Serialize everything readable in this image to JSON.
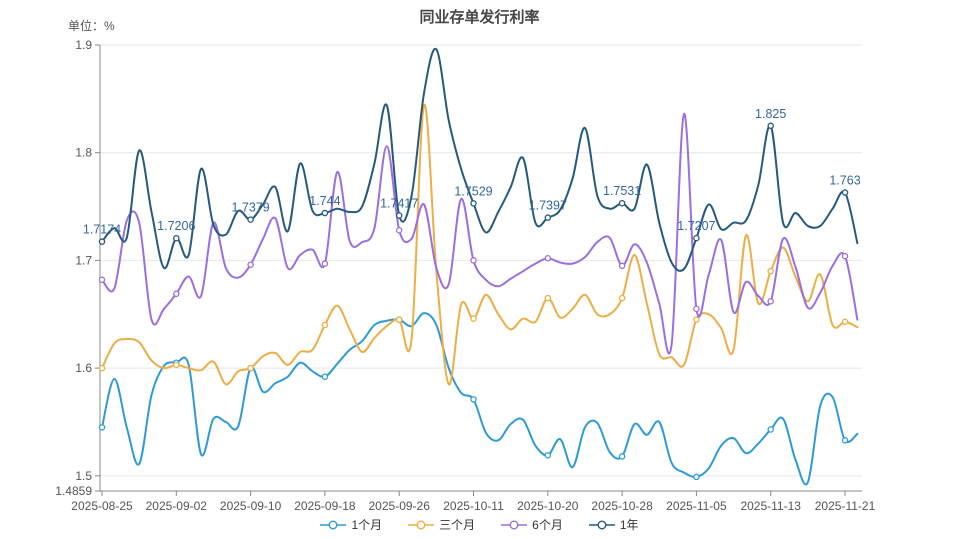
{
  "title": "同业存单发行利率",
  "unit_label": "单位：%",
  "chart_data": {
    "type": "line",
    "title": "同业存单发行利率",
    "ylabel": "单位：%",
    "grid": true,
    "legend_position": "bottom",
    "ylim": [
      1.4859,
      1.9
    ],
    "y_ticks": [
      {
        "v": 1.9,
        "label": "1.9"
      },
      {
        "v": 1.8,
        "label": "1.8"
      },
      {
        "v": 1.7,
        "label": "1.7"
      },
      {
        "v": 1.6,
        "label": "1.6"
      },
      {
        "v": 1.5,
        "label": "1.5"
      },
      {
        "v": 1.4859,
        "label": "1.4859"
      }
    ],
    "x_tick_labels": [
      "2025-08-25",
      "2025-09-02",
      "2025-09-10",
      "2025-09-18",
      "2025-09-26",
      "2025-10-11",
      "2025-10-20",
      "2025-10-28",
      "2025-11-05",
      "2025-11-13",
      "2025-11-21"
    ],
    "tick_every": 6,
    "n_points": 62,
    "series": [
      {
        "name": "1个月",
        "color": "#2e9bd6",
        "values": [
          1.545,
          1.59,
          1.545,
          1.511,
          1.575,
          1.602,
          1.605,
          1.603,
          1.52,
          1.553,
          1.55,
          1.546,
          1.6,
          1.578,
          1.586,
          1.592,
          1.605,
          1.597,
          1.592,
          1.604,
          1.617,
          1.625,
          1.64,
          1.644,
          1.645,
          1.639,
          1.651,
          1.64,
          1.6,
          1.577,
          1.571,
          1.54,
          1.533,
          1.548,
          1.552,
          1.528,
          1.519,
          1.534,
          1.508,
          1.545,
          1.549,
          1.522,
          1.518,
          1.548,
          1.538,
          1.55,
          1.512,
          1.503,
          1.499,
          1.507,
          1.528,
          1.535,
          1.521,
          1.53,
          1.543,
          1.553,
          1.515,
          1.494,
          1.565,
          1.573,
          1.533,
          1.539
        ]
      },
      {
        "name": "三个月",
        "color": "#ecae45",
        "values": [
          1.6,
          1.623,
          1.627,
          1.624,
          1.607,
          1.6,
          1.603,
          1.6,
          1.598,
          1.606,
          1.585,
          1.597,
          1.6,
          1.611,
          1.614,
          1.603,
          1.615,
          1.617,
          1.64,
          1.658,
          1.636,
          1.615,
          1.628,
          1.639,
          1.645,
          1.627,
          1.844,
          1.69,
          1.585,
          1.659,
          1.646,
          1.668,
          1.65,
          1.636,
          1.646,
          1.643,
          1.665,
          1.647,
          1.655,
          1.668,
          1.65,
          1.65,
          1.665,
          1.705,
          1.66,
          1.613,
          1.61,
          1.603,
          1.645,
          1.65,
          1.637,
          1.617,
          1.723,
          1.66,
          1.69,
          1.712,
          1.685,
          1.662,
          1.687,
          1.64,
          1.643,
          1.638
        ]
      },
      {
        "name": "6个月",
        "color": "#9b6fe1",
        "values": [
          1.682,
          1.674,
          1.737,
          1.735,
          1.645,
          1.655,
          1.669,
          1.685,
          1.667,
          1.735,
          1.693,
          1.684,
          1.696,
          1.72,
          1.739,
          1.693,
          1.705,
          1.71,
          1.697,
          1.782,
          1.718,
          1.717,
          1.73,
          1.806,
          1.728,
          1.72,
          1.752,
          1.693,
          1.678,
          1.757,
          1.7,
          1.682,
          1.676,
          1.683,
          1.69,
          1.697,
          1.702,
          1.698,
          1.697,
          1.703,
          1.717,
          1.721,
          1.695,
          1.715,
          1.698,
          1.66,
          1.622,
          1.836,
          1.655,
          1.687,
          1.719,
          1.652,
          1.68,
          1.667,
          1.662,
          1.72,
          1.694,
          1.656,
          1.67,
          1.695,
          1.704,
          1.645
        ]
      },
      {
        "name": "1年",
        "color": "#255a7e",
        "label_color": "#33679b",
        "show_point_labels": true,
        "point_labels": [
          "1.7174",
          "1.7206",
          "1.7379",
          "1.744",
          "1.7417",
          "1.7529",
          "1.7397",
          "1.7531",
          "1.7207",
          "1.825",
          "1.763"
        ],
        "values": [
          1.7174,
          1.73,
          1.721,
          1.802,
          1.745,
          1.693,
          1.7206,
          1.705,
          1.785,
          1.733,
          1.724,
          1.746,
          1.7379,
          1.752,
          1.768,
          1.727,
          1.79,
          1.746,
          1.744,
          1.748,
          1.745,
          1.75,
          1.79,
          1.844,
          1.7417,
          1.76,
          1.855,
          1.896,
          1.83,
          1.785,
          1.7529,
          1.726,
          1.745,
          1.768,
          1.795,
          1.735,
          1.7397,
          1.747,
          1.776,
          1.823,
          1.76,
          1.748,
          1.7531,
          1.748,
          1.789,
          1.735,
          1.698,
          1.692,
          1.7207,
          1.752,
          1.729,
          1.735,
          1.737,
          1.77,
          1.825,
          1.735,
          1.744,
          1.732,
          1.732,
          1.748,
          1.763,
          1.716
        ]
      }
    ],
    "axis_color": "#888888",
    "grid_color": "#e4e7ee",
    "tick_text_color": "#555555"
  }
}
